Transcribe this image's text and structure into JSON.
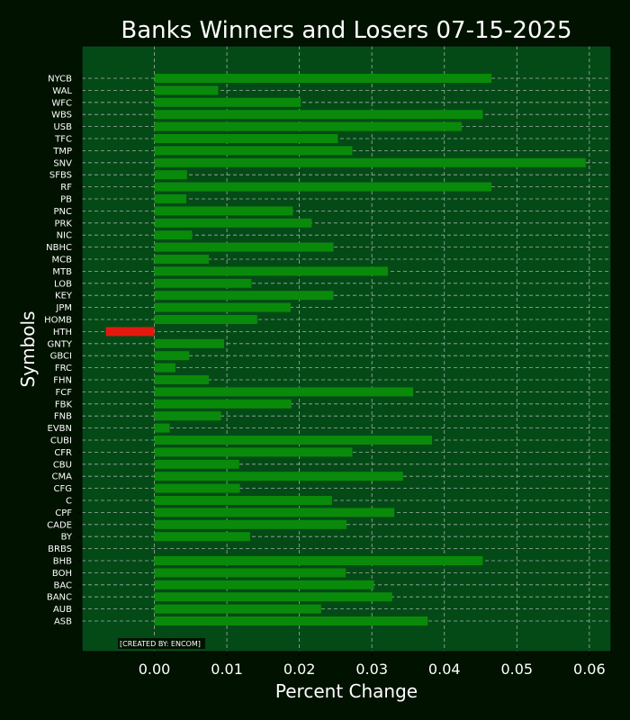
{
  "chart_data": {
    "type": "bar",
    "orientation": "horizontal",
    "title": "Banks Winners and Losers 07-15-2025",
    "xlabel": "Percent Change",
    "ylabel": "Symbols",
    "xlim": [
      -0.01,
      0.063
    ],
    "xticks": [
      "0.00",
      "0.01",
      "0.02",
      "0.03",
      "0.04",
      "0.05",
      "0.06"
    ],
    "grid": true,
    "credit": "[CREATED BY: ENCOM]",
    "colors": {
      "background": "#011200",
      "plot_area": "#044a17",
      "positive": "#0a8a0a",
      "negative": "#e3190f",
      "grid": "#c8c8c8"
    },
    "categories": [
      "NYCB",
      "WAL",
      "WFC",
      "WBS",
      "USB",
      "TFC",
      "TMP",
      "SNV",
      "SFBS",
      "RF",
      "PB",
      "PNC",
      "PRK",
      "NIC",
      "NBHC",
      "MCB",
      "MTB",
      "LOB",
      "KEY",
      "JPM",
      "HOMB",
      "HTH",
      "GNTY",
      "GBCI",
      "FRC",
      "FHN",
      "FCF",
      "FBK",
      "FNB",
      "EVBN",
      "CUBI",
      "CFR",
      "CBU",
      "CMA",
      "CFG",
      "C",
      "CPF",
      "CADE",
      "BY",
      "BRBS",
      "BHB",
      "BOH",
      "BAC",
      "BANC",
      "AUB",
      "ASB"
    ],
    "values": [
      0.0465,
      0.0088,
      0.0202,
      0.0453,
      0.0424,
      0.0253,
      0.0273,
      0.0595,
      0.0045,
      0.0465,
      0.0044,
      0.0191,
      0.0217,
      0.0052,
      0.0247,
      0.0075,
      0.0322,
      0.0134,
      0.0247,
      0.0188,
      0.0142,
      -0.0067,
      0.0096,
      0.0048,
      0.0029,
      0.0075,
      0.0357,
      0.0189,
      0.0092,
      0.0021,
      0.0383,
      0.0273,
      0.0117,
      0.0343,
      0.0118,
      0.0245,
      0.0331,
      0.0265,
      0.0132,
      0.0,
      0.0453,
      0.0264,
      0.0303,
      0.0328,
      0.023,
      0.0377
    ]
  }
}
